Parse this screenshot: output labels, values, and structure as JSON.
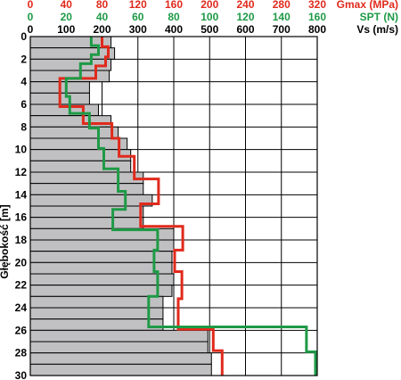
{
  "chart_data": {
    "type": "line",
    "ylabel": "Głębokość [m]",
    "ylim": [
      0,
      30
    ],
    "y_ticks": [
      "0",
      "2",
      "4",
      "6",
      "8",
      "10",
      "12",
      "14",
      "16",
      "18",
      "20",
      "22",
      "24",
      "26",
      "28",
      "30"
    ],
    "grid": true,
    "axes": [
      {
        "key": "gmax",
        "title": "Gmax (MPa)",
        "color": "#e02a1c",
        "xlim": [
          0,
          320
        ],
        "ticks": [
          "0",
          "40",
          "80",
          "120",
          "160",
          "200",
          "240",
          "280",
          "320"
        ]
      },
      {
        "key": "spt",
        "title": "SPT (N)",
        "color": "#1e9a46",
        "xlim": [
          0,
          160
        ],
        "ticks": [
          "0",
          "20",
          "40",
          "60",
          "80",
          "100",
          "120",
          "140",
          "160"
        ]
      },
      {
        "key": "vs",
        "title": "Vs (m/s)",
        "color": "#000000",
        "xlim": [
          0,
          800
        ],
        "ticks": [
          "0",
          "100",
          "200",
          "300",
          "400",
          "500",
          "600",
          "700",
          "800"
        ]
      }
    ],
    "series": [
      {
        "name": "Vs (m/s)",
        "axis": "vs",
        "style": "bars",
        "fill": "#c0c0c2",
        "layers": [
          {
            "top": 0,
            "bottom": 1,
            "value": 225
          },
          {
            "top": 1,
            "bottom": 2,
            "value": 235
          },
          {
            "top": 2,
            "bottom": 3,
            "value": 225
          },
          {
            "top": 3,
            "bottom": 4,
            "value": 220
          },
          {
            "top": 4,
            "bottom": 5,
            "value": 165
          },
          {
            "top": 5,
            "bottom": 6,
            "value": 165
          },
          {
            "top": 6,
            "bottom": 7,
            "value": 190
          },
          {
            "top": 7,
            "bottom": 8,
            "value": 225
          },
          {
            "top": 8,
            "bottom": 9,
            "value": 245
          },
          {
            "top": 9,
            "bottom": 10,
            "value": 270
          },
          {
            "top": 10,
            "bottom": 11,
            "value": 280
          },
          {
            "top": 11,
            "bottom": 12,
            "value": 280
          },
          {
            "top": 12,
            "bottom": 13,
            "value": 315
          },
          {
            "top": 13,
            "bottom": 14,
            "value": 315
          },
          {
            "top": 14,
            "bottom": 15,
            "value": 340
          },
          {
            "top": 15,
            "bottom": 16,
            "value": 315
          },
          {
            "top": 16,
            "bottom": 17,
            "value": 315
          },
          {
            "top": 17,
            "bottom": 18,
            "value": 400
          },
          {
            "top": 18,
            "bottom": 19,
            "value": 400
          },
          {
            "top": 19,
            "bottom": 20,
            "value": 395
          },
          {
            "top": 20,
            "bottom": 21,
            "value": 395
          },
          {
            "top": 21,
            "bottom": 22,
            "value": 400
          },
          {
            "top": 22,
            "bottom": 23,
            "value": 395
          },
          {
            "top": 23,
            "bottom": 24,
            "value": 370
          },
          {
            "top": 24,
            "bottom": 25,
            "value": 370
          },
          {
            "top": 25,
            "bottom": 26,
            "value": 370
          },
          {
            "top": 26,
            "bottom": 27,
            "value": 495
          },
          {
            "top": 27,
            "bottom": 28,
            "value": 495
          },
          {
            "top": 28,
            "bottom": 29,
            "value": 505
          },
          {
            "top": 29,
            "bottom": 30,
            "value": 505
          }
        ]
      },
      {
        "name": "Gmax (MPa)",
        "axis": "gmax",
        "style": "step",
        "color": "#e02a1c",
        "points": [
          {
            "x": 80,
            "depth": 0.0
          },
          {
            "x": 80,
            "depth": 0.9
          },
          {
            "x": 87,
            "depth": 0.9
          },
          {
            "x": 87,
            "depth": 1.8
          },
          {
            "x": 84,
            "depth": 1.8
          },
          {
            "x": 84,
            "depth": 2.6
          },
          {
            "x": 73,
            "depth": 2.6
          },
          {
            "x": 73,
            "depth": 3.7
          },
          {
            "x": 33,
            "depth": 3.7
          },
          {
            "x": 33,
            "depth": 6.2
          },
          {
            "x": 59,
            "depth": 6.2
          },
          {
            "x": 59,
            "depth": 7.7
          },
          {
            "x": 91,
            "depth": 7.7
          },
          {
            "x": 91,
            "depth": 9.0
          },
          {
            "x": 99,
            "depth": 9.0
          },
          {
            "x": 99,
            "depth": 10.6
          },
          {
            "x": 116,
            "depth": 10.6
          },
          {
            "x": 116,
            "depth": 12.6
          },
          {
            "x": 143,
            "depth": 12.6
          },
          {
            "x": 143,
            "depth": 14.8
          },
          {
            "x": 123,
            "depth": 14.8
          },
          {
            "x": 123,
            "depth": 16.8
          },
          {
            "x": 170,
            "depth": 16.8
          },
          {
            "x": 170,
            "depth": 18.9
          },
          {
            "x": 161,
            "depth": 18.9
          },
          {
            "x": 161,
            "depth": 20.8
          },
          {
            "x": 169,
            "depth": 20.8
          },
          {
            "x": 169,
            "depth": 23.2
          },
          {
            "x": 165,
            "depth": 23.2
          },
          {
            "x": 165,
            "depth": 25.9
          },
          {
            "x": 204,
            "depth": 25.9
          },
          {
            "x": 204,
            "depth": 27.8
          },
          {
            "x": 214,
            "depth": 27.8
          },
          {
            "x": 214,
            "depth": 30.0
          }
        ]
      },
      {
        "name": "SPT (N)",
        "axis": "spt",
        "style": "step",
        "color": "#1e9a46",
        "points": [
          {
            "x": 34,
            "depth": 0.0
          },
          {
            "x": 34,
            "depth": 0.8
          },
          {
            "x": 38,
            "depth": 0.8
          },
          {
            "x": 38,
            "depth": 1.6
          },
          {
            "x": 34,
            "depth": 1.6
          },
          {
            "x": 34,
            "depth": 2.4
          },
          {
            "x": 28,
            "depth": 2.4
          },
          {
            "x": 28,
            "depth": 3.7
          },
          {
            "x": 20,
            "depth": 3.7
          },
          {
            "x": 20,
            "depth": 5.3
          },
          {
            "x": 22,
            "depth": 5.3
          },
          {
            "x": 22,
            "depth": 6.8
          },
          {
            "x": 33,
            "depth": 6.8
          },
          {
            "x": 33,
            "depth": 8.1
          },
          {
            "x": 38,
            "depth": 8.1
          },
          {
            "x": 38,
            "depth": 9.9
          },
          {
            "x": 41,
            "depth": 9.9
          },
          {
            "x": 41,
            "depth": 11.7
          },
          {
            "x": 49,
            "depth": 11.7
          },
          {
            "x": 49,
            "depth": 13.7
          },
          {
            "x": 53,
            "depth": 13.7
          },
          {
            "x": 53,
            "depth": 15.3
          },
          {
            "x": 46,
            "depth": 15.3
          },
          {
            "x": 46,
            "depth": 17.1
          },
          {
            "x": 71,
            "depth": 17.1
          },
          {
            "x": 71,
            "depth": 18.9
          },
          {
            "x": 69,
            "depth": 18.9
          },
          {
            "x": 69,
            "depth": 20.8
          },
          {
            "x": 71,
            "depth": 20.8
          },
          {
            "x": 71,
            "depth": 23.0
          },
          {
            "x": 66,
            "depth": 23.0
          },
          {
            "x": 66,
            "depth": 25.7
          },
          {
            "x": 154,
            "depth": 25.7
          },
          {
            "x": 154,
            "depth": 27.9
          },
          {
            "x": 159,
            "depth": 27.9
          },
          {
            "x": 159,
            "depth": 30.0
          }
        ]
      }
    ]
  }
}
